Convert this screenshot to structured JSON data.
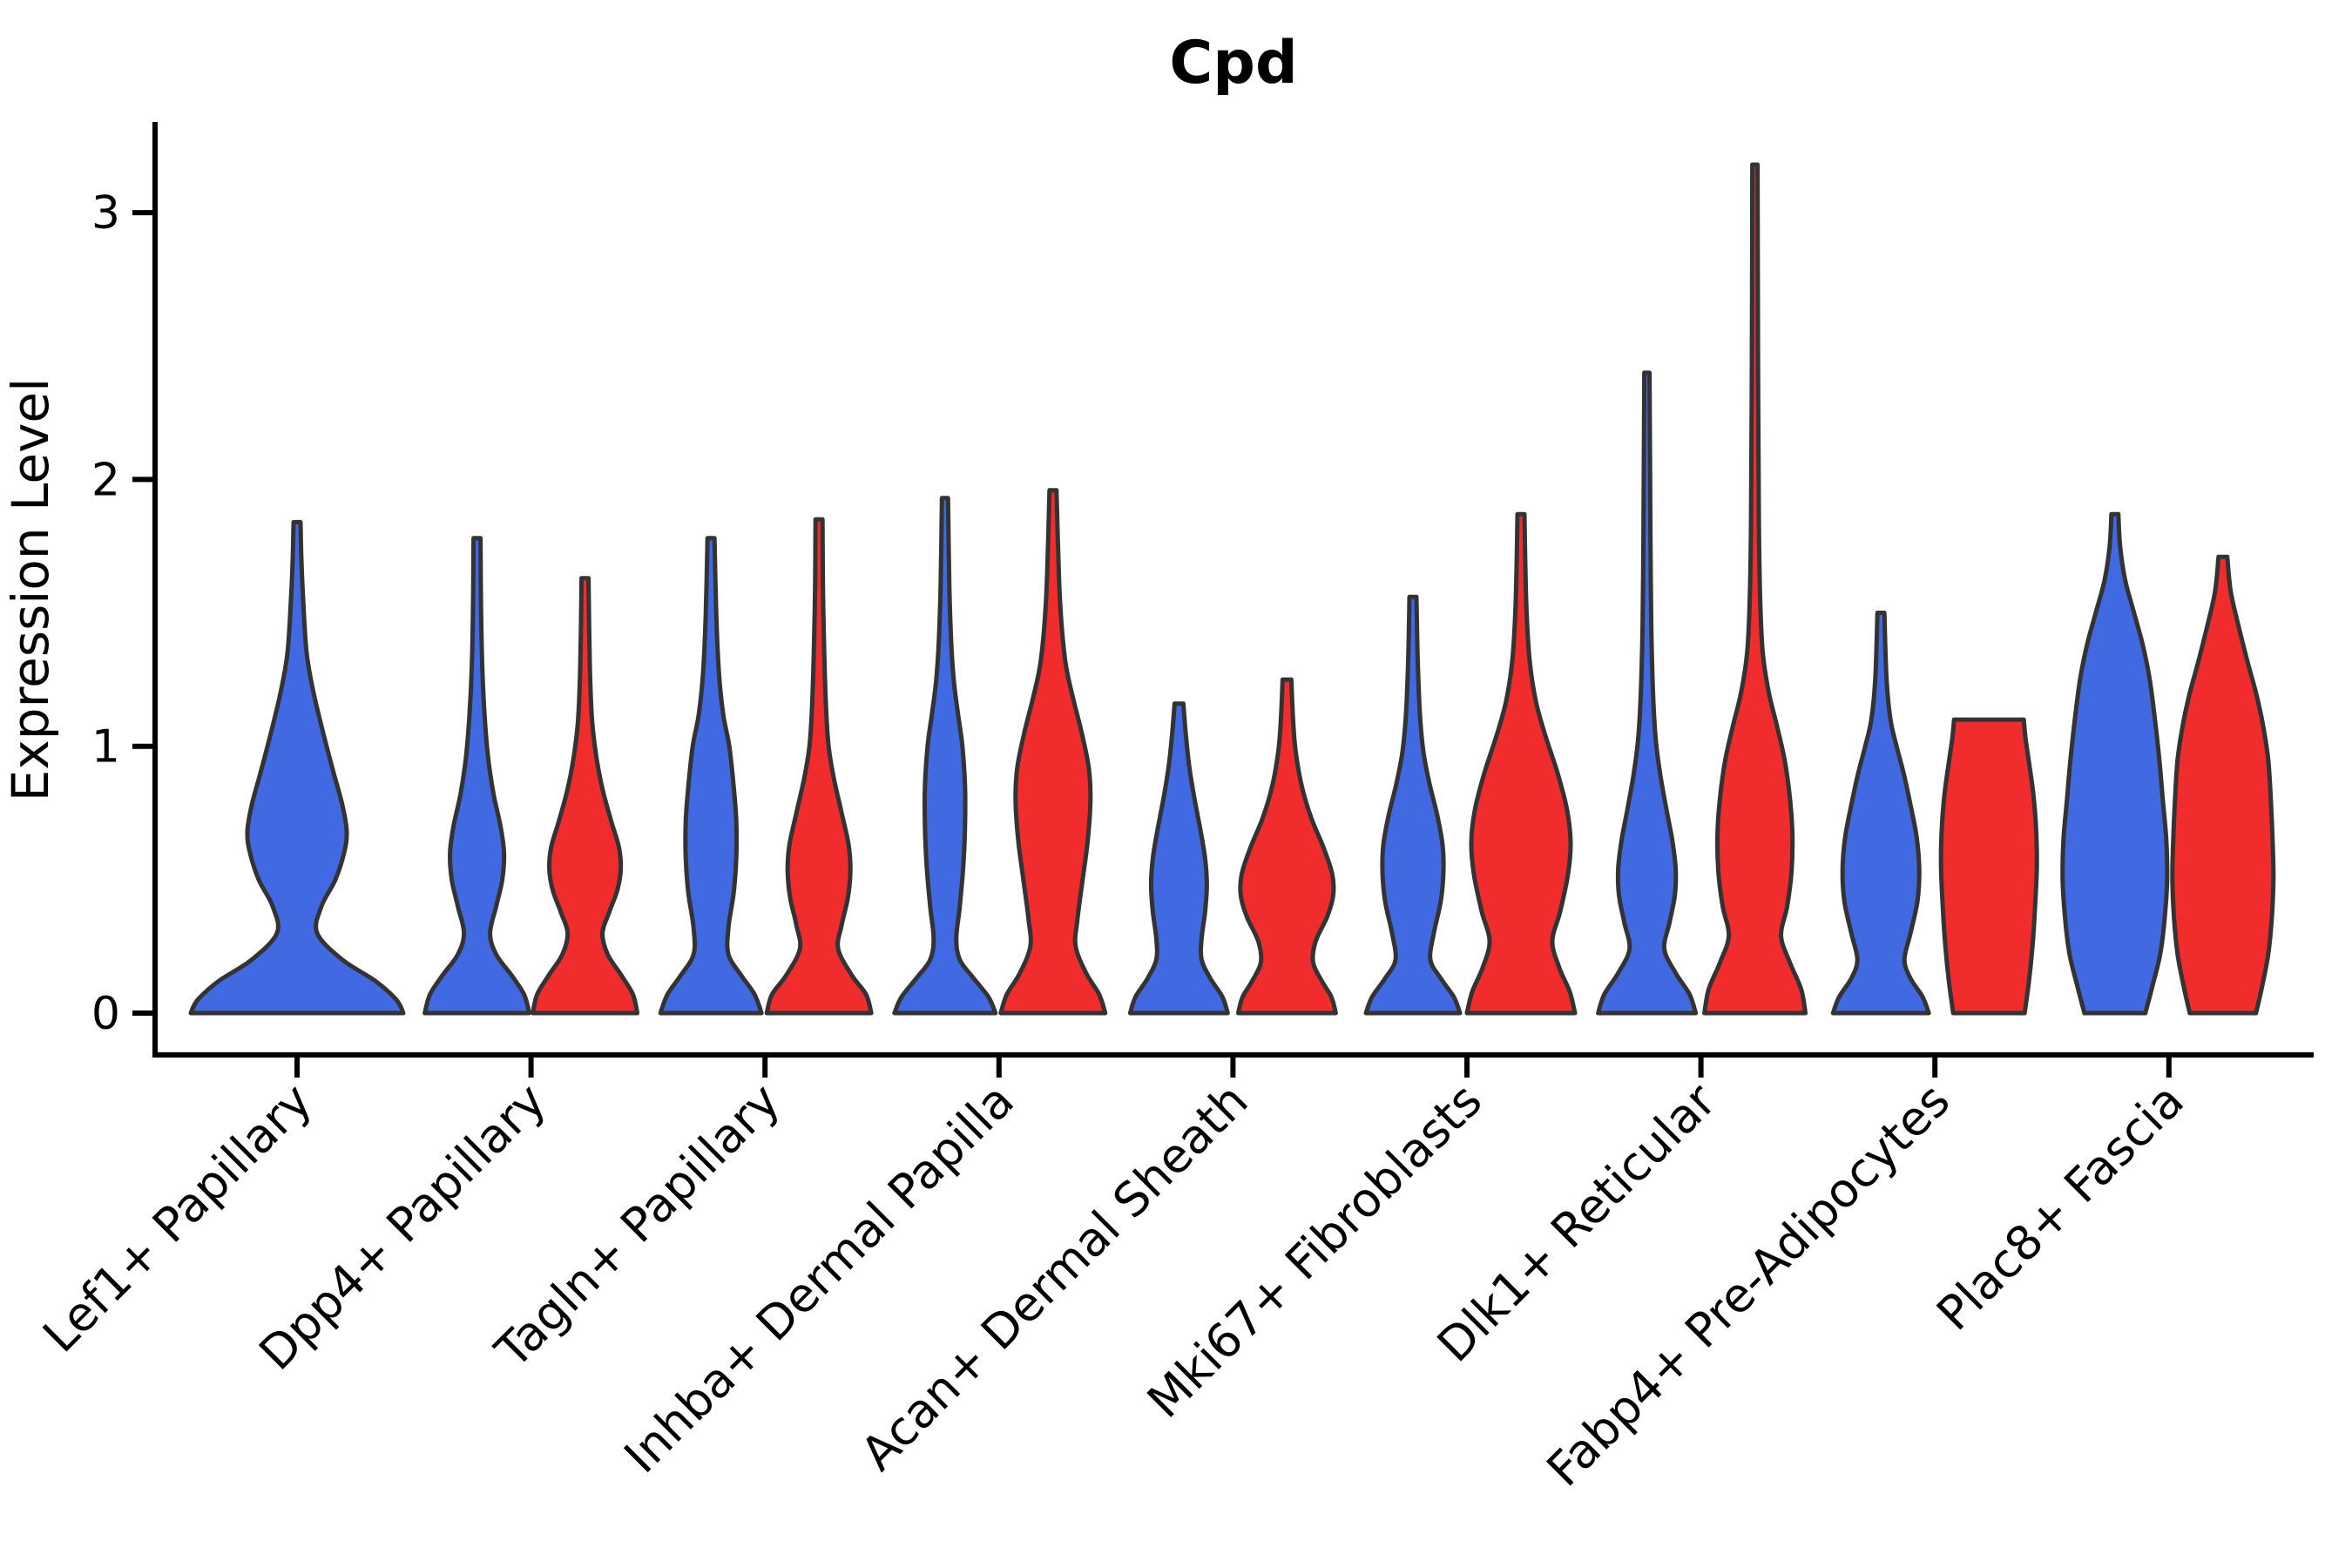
{
  "figure": {
    "background": "#ffffff"
  },
  "chart_data": {
    "type": "violin",
    "title": "Cpd",
    "xlabel": "",
    "ylabel": "Expression Level",
    "ylim": [
      0,
      3.35
    ],
    "yticks": [
      0,
      1,
      2,
      3
    ],
    "ytick_labels": [
      "0",
      "1",
      "2",
      "3"
    ],
    "grid": false,
    "legend": "none",
    "edge_color": "#333333",
    "categories": [
      "Lef1+ Papillary",
      "Dpp4+ Papillary",
      "Tagln+ Papillary",
      "Inhba+ Dermal Papilla",
      "Acan+ Dermal Sheath",
      "Mki67+ Fibroblasts",
      "Dlk1+ Reticular",
      "Fabp4+ Pre-Adipocytes",
      "Plac8+ Fascia"
    ],
    "series": [
      {
        "name": "group-blue",
        "color": "#4169e1"
      },
      {
        "name": "group-red",
        "color": "#f02c2c"
      }
    ],
    "violins": [
      {
        "category_index": 0,
        "series": 0,
        "offset": 0,
        "max_value": 1.84,
        "flat_top": false,
        "profile": [
          [
            0,
            122
          ],
          [
            0.05,
            114
          ],
          [
            0.12,
            90
          ],
          [
            0.2,
            52
          ],
          [
            0.3,
            23
          ],
          [
            0.4,
            28
          ],
          [
            0.5,
            44
          ],
          [
            0.6,
            54
          ],
          [
            0.68,
            57
          ],
          [
            0.78,
            52
          ],
          [
            0.9,
            42
          ],
          [
            1.05,
            30
          ],
          [
            1.2,
            19
          ],
          [
            1.35,
            11
          ],
          [
            1.55,
            7
          ],
          [
            1.7,
            5
          ],
          [
            1.84,
            4
          ]
        ]
      },
      {
        "category_index": 1,
        "series": 0,
        "offset": -62,
        "max_value": 1.78,
        "flat_top": false,
        "profile": [
          [
            0,
            60
          ],
          [
            0.07,
            54
          ],
          [
            0.14,
            40
          ],
          [
            0.22,
            22
          ],
          [
            0.3,
            15
          ],
          [
            0.4,
            22
          ],
          [
            0.5,
            29
          ],
          [
            0.6,
            31
          ],
          [
            0.7,
            27
          ],
          [
            0.82,
            19
          ],
          [
            0.95,
            13
          ],
          [
            1.1,
            9
          ],
          [
            1.3,
            6
          ],
          [
            1.55,
            4.5
          ],
          [
            1.78,
            4
          ]
        ]
      },
      {
        "category_index": 1,
        "series": 1,
        "offset": 62,
        "max_value": 1.63,
        "flat_top": false,
        "profile": [
          [
            0,
            60
          ],
          [
            0.07,
            55
          ],
          [
            0.14,
            42
          ],
          [
            0.22,
            26
          ],
          [
            0.3,
            20
          ],
          [
            0.38,
            28
          ],
          [
            0.46,
            37
          ],
          [
            0.54,
            41
          ],
          [
            0.62,
            39
          ],
          [
            0.72,
            30
          ],
          [
            0.84,
            20
          ],
          [
            0.96,
            13
          ],
          [
            1.1,
            8
          ],
          [
            1.3,
            5.5
          ],
          [
            1.63,
            4
          ]
        ]
      },
      {
        "category_index": 2,
        "series": 0,
        "offset": -62,
        "max_value": 1.78,
        "flat_top": false,
        "profile": [
          [
            0,
            58
          ],
          [
            0.07,
            50
          ],
          [
            0.14,
            35
          ],
          [
            0.22,
            20
          ],
          [
            0.32,
            20
          ],
          [
            0.45,
            26
          ],
          [
            0.58,
            29
          ],
          [
            0.72,
            29
          ],
          [
            0.85,
            26
          ],
          [
            1.0,
            21
          ],
          [
            1.12,
            14
          ],
          [
            1.28,
            9
          ],
          [
            1.5,
            6
          ],
          [
            1.78,
            4
          ]
        ]
      },
      {
        "category_index": 2,
        "series": 1,
        "offset": 62,
        "max_value": 1.85,
        "flat_top": false,
        "profile": [
          [
            0,
            60
          ],
          [
            0.07,
            54
          ],
          [
            0.14,
            38
          ],
          [
            0.24,
            22
          ],
          [
            0.33,
            26
          ],
          [
            0.43,
            33
          ],
          [
            0.53,
            36
          ],
          [
            0.63,
            34
          ],
          [
            0.75,
            26
          ],
          [
            0.88,
            17
          ],
          [
            1.0,
            11
          ],
          [
            1.15,
            8
          ],
          [
            1.35,
            6
          ],
          [
            1.6,
            4.5
          ],
          [
            1.85,
            4
          ]
        ]
      },
      {
        "category_index": 3,
        "series": 0,
        "offset": -62,
        "max_value": 1.93,
        "flat_top": false,
        "profile": [
          [
            0,
            58
          ],
          [
            0.06,
            50
          ],
          [
            0.13,
            33
          ],
          [
            0.2,
            17
          ],
          [
            0.28,
            13
          ],
          [
            0.4,
            17
          ],
          [
            0.55,
            21
          ],
          [
            0.7,
            23
          ],
          [
            0.85,
            23
          ],
          [
            1.0,
            20
          ],
          [
            1.12,
            15
          ],
          [
            1.25,
            10
          ],
          [
            1.4,
            7
          ],
          [
            1.6,
            5
          ],
          [
            1.93,
            3.5
          ]
        ]
      },
      {
        "category_index": 3,
        "series": 1,
        "offset": 62,
        "max_value": 1.96,
        "flat_top": false,
        "profile": [
          [
            0,
            60
          ],
          [
            0.07,
            53
          ],
          [
            0.15,
            38
          ],
          [
            0.25,
            26
          ],
          [
            0.35,
            28
          ],
          [
            0.5,
            34
          ],
          [
            0.65,
            40
          ],
          [
            0.8,
            43
          ],
          [
            0.92,
            41
          ],
          [
            1.05,
            33
          ],
          [
            1.18,
            23
          ],
          [
            1.3,
            15
          ],
          [
            1.45,
            10
          ],
          [
            1.62,
            7
          ],
          [
            1.96,
            4
          ]
        ]
      },
      {
        "category_index": 4,
        "series": 0,
        "offset": -62,
        "max_value": 1.16,
        "flat_top": false,
        "profile": [
          [
            0,
            56
          ],
          [
            0.06,
            50
          ],
          [
            0.13,
            36
          ],
          [
            0.2,
            26
          ],
          [
            0.28,
            26
          ],
          [
            0.38,
            30
          ],
          [
            0.48,
            32
          ],
          [
            0.58,
            30
          ],
          [
            0.68,
            25
          ],
          [
            0.8,
            18
          ],
          [
            0.92,
            12
          ],
          [
            1.04,
            8
          ],
          [
            1.16,
            5
          ]
        ]
      },
      {
        "category_index": 4,
        "series": 1,
        "offset": 62,
        "max_value": 1.25,
        "flat_top": false,
        "profile": [
          [
            0,
            56
          ],
          [
            0.06,
            51
          ],
          [
            0.12,
            40
          ],
          [
            0.19,
            30
          ],
          [
            0.27,
            33
          ],
          [
            0.36,
            46
          ],
          [
            0.44,
            53
          ],
          [
            0.52,
            52
          ],
          [
            0.62,
            42
          ],
          [
            0.73,
            28
          ],
          [
            0.85,
            17
          ],
          [
            0.98,
            10
          ],
          [
            1.1,
            7
          ],
          [
            1.25,
            5
          ]
        ]
      },
      {
        "category_index": 5,
        "series": 0,
        "offset": -62,
        "max_value": 1.56,
        "flat_top": false,
        "profile": [
          [
            0,
            54
          ],
          [
            0.06,
            47
          ],
          [
            0.13,
            32
          ],
          [
            0.2,
            20
          ],
          [
            0.3,
            24
          ],
          [
            0.42,
            32
          ],
          [
            0.53,
            35
          ],
          [
            0.63,
            34
          ],
          [
            0.74,
            28
          ],
          [
            0.86,
            19
          ],
          [
            0.98,
            12
          ],
          [
            1.12,
            8
          ],
          [
            1.32,
            5.5
          ],
          [
            1.56,
            4
          ]
        ]
      },
      {
        "category_index": 5,
        "series": 1,
        "offset": 62,
        "max_value": 1.87,
        "flat_top": false,
        "profile": [
          [
            0,
            62
          ],
          [
            0.08,
            56
          ],
          [
            0.17,
            44
          ],
          [
            0.27,
            36
          ],
          [
            0.38,
            45
          ],
          [
            0.52,
            54
          ],
          [
            0.64,
            57
          ],
          [
            0.76,
            53
          ],
          [
            0.9,
            42
          ],
          [
            1.04,
            28
          ],
          [
            1.17,
            17
          ],
          [
            1.32,
            10
          ],
          [
            1.5,
            6.5
          ],
          [
            1.68,
            5
          ],
          [
            1.87,
            4
          ]
        ]
      },
      {
        "category_index": 6,
        "series": 0,
        "offset": -62,
        "max_value": 2.4,
        "flat_top": false,
        "profile": [
          [
            0,
            56
          ],
          [
            0.07,
            49
          ],
          [
            0.15,
            33
          ],
          [
            0.24,
            20
          ],
          [
            0.34,
            26
          ],
          [
            0.44,
            32
          ],
          [
            0.54,
            33
          ],
          [
            0.65,
            29
          ],
          [
            0.77,
            22
          ],
          [
            0.9,
            15
          ],
          [
            1.03,
            10
          ],
          [
            1.2,
            7
          ],
          [
            1.45,
            5
          ],
          [
            1.8,
            4
          ],
          [
            2.1,
            3.5
          ],
          [
            2.4,
            3
          ]
        ]
      },
      {
        "category_index": 6,
        "series": 1,
        "offset": 62,
        "max_value": 3.18,
        "flat_top": false,
        "profile": [
          [
            0,
            58
          ],
          [
            0.09,
            53
          ],
          [
            0.19,
            40
          ],
          [
            0.29,
            30
          ],
          [
            0.4,
            37
          ],
          [
            0.53,
            42
          ],
          [
            0.67,
            43
          ],
          [
            0.81,
            40
          ],
          [
            0.95,
            34
          ],
          [
            1.08,
            25
          ],
          [
            1.2,
            16
          ],
          [
            1.35,
            9
          ],
          [
            1.55,
            6
          ],
          [
            1.85,
            4.5
          ],
          [
            2.5,
            3.5
          ],
          [
            3.18,
            3
          ]
        ]
      },
      {
        "category_index": 7,
        "series": 0,
        "offset": -62,
        "max_value": 1.5,
        "flat_top": false,
        "profile": [
          [
            0,
            55
          ],
          [
            0.06,
            48
          ],
          [
            0.13,
            34
          ],
          [
            0.2,
            27
          ],
          [
            0.3,
            34
          ],
          [
            0.42,
            42
          ],
          [
            0.54,
            44
          ],
          [
            0.66,
            41
          ],
          [
            0.78,
            34
          ],
          [
            0.9,
            26
          ],
          [
            1.0,
            18
          ],
          [
            1.1,
            11
          ],
          [
            1.25,
            6.5
          ],
          [
            1.5,
            4
          ]
        ]
      },
      {
        "category_index": 7,
        "series": 1,
        "offset": 62,
        "max_value": 1.1,
        "flat_top": true,
        "profile": [
          [
            0,
            41
          ],
          [
            0.12,
            46
          ],
          [
            0.25,
            50
          ],
          [
            0.4,
            53
          ],
          [
            0.55,
            55
          ],
          [
            0.7,
            54
          ],
          [
            0.82,
            51
          ],
          [
            0.94,
            46
          ],
          [
            1.03,
            42
          ],
          [
            1.1,
            40
          ]
        ]
      },
      {
        "category_index": 8,
        "series": 0,
        "offset": -62,
        "max_value": 1.87,
        "flat_top": false,
        "profile": [
          [
            0,
            35
          ],
          [
            0.1,
            43
          ],
          [
            0.22,
            52
          ],
          [
            0.35,
            57
          ],
          [
            0.5,
            60
          ],
          [
            0.65,
            59
          ],
          [
            0.8,
            55
          ],
          [
            0.95,
            51
          ],
          [
            1.1,
            46
          ],
          [
            1.25,
            40
          ],
          [
            1.38,
            32
          ],
          [
            1.5,
            22
          ],
          [
            1.62,
            12
          ],
          [
            1.75,
            6
          ],
          [
            1.87,
            4
          ]
        ]
      },
      {
        "category_index": 8,
        "series": 1,
        "offset": 62,
        "max_value": 1.71,
        "flat_top": false,
        "profile": [
          [
            0,
            38
          ],
          [
            0.1,
            45
          ],
          [
            0.22,
            52
          ],
          [
            0.35,
            56
          ],
          [
            0.5,
            58
          ],
          [
            0.65,
            57
          ],
          [
            0.8,
            55
          ],
          [
            0.95,
            52
          ],
          [
            1.08,
            46
          ],
          [
            1.2,
            38
          ],
          [
            1.32,
            28
          ],
          [
            1.45,
            18
          ],
          [
            1.58,
            9
          ],
          [
            1.71,
            5
          ]
        ]
      }
    ],
    "layout": {
      "axis_left": 178,
      "axis_bottom": 1211,
      "axis_right": 2656,
      "axis_top": 140,
      "x_start": 341,
      "x_spacing": 268.6,
      "y_zero": 1163,
      "y_per_unit": 306.3,
      "spine_width": 6,
      "tick_len": 26,
      "violin_stroke_width": 5
    }
  }
}
